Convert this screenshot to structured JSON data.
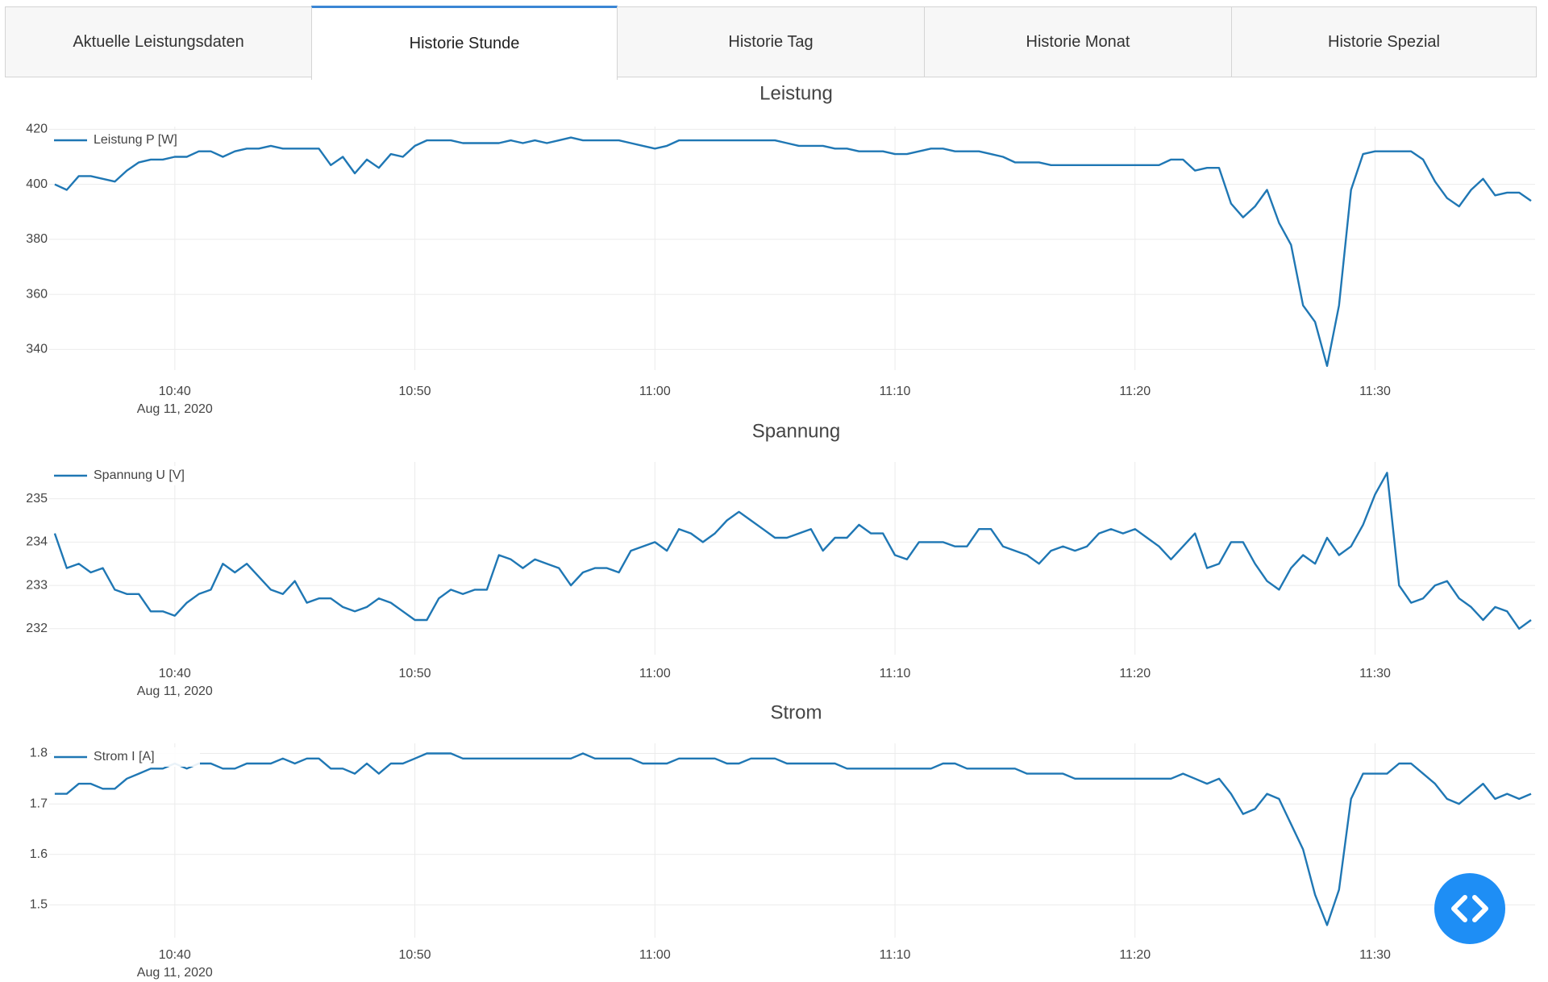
{
  "tabs": [
    "Aktuelle Leistungsdaten",
    "Historie Stunde",
    "Historie Tag",
    "Historie Monat",
    "Historie Spezial"
  ],
  "chart_data": [
    {
      "type": "line",
      "title": "Leistung",
      "date_label": "Aug 11, 2020",
      "grid": true,
      "legend": "top-left",
      "xlim": [
        "10:34:46",
        "11:36:40"
      ],
      "xticks": [
        {
          "value": "10:40:00",
          "label": "10:40"
        },
        {
          "value": "10:50:00",
          "label": "10:50"
        },
        {
          "value": "11:00:00",
          "label": "11:00"
        },
        {
          "value": "11:10:00",
          "label": "11:10"
        },
        {
          "value": "11:20:00",
          "label": "11:20"
        },
        {
          "value": "11:30:00",
          "label": "11:30"
        }
      ],
      "ylim": [
        332.5,
        421
      ],
      "yticks": [
        340,
        360,
        380,
        400,
        420
      ],
      "x": [
        "10:35:00",
        "10:35:30",
        "10:36:00",
        "10:36:30",
        "10:37:00",
        "10:37:30",
        "10:38:00",
        "10:38:30",
        "10:39:00",
        "10:39:30",
        "10:40:00",
        "10:40:30",
        "10:41:00",
        "10:41:30",
        "10:42:00",
        "10:42:30",
        "10:43:00",
        "10:43:30",
        "10:44:00",
        "10:44:30",
        "10:45:00",
        "10:45:30",
        "10:46:00",
        "10:46:30",
        "10:47:00",
        "10:47:30",
        "10:48:00",
        "10:48:30",
        "10:49:00",
        "10:49:30",
        "10:50:00",
        "10:50:30",
        "10:51:00",
        "10:51:30",
        "10:52:00",
        "10:52:30",
        "10:53:00",
        "10:53:30",
        "10:54:00",
        "10:54:30",
        "10:55:00",
        "10:55:30",
        "10:56:00",
        "10:56:30",
        "10:57:00",
        "10:57:30",
        "10:58:00",
        "10:58:30",
        "10:59:00",
        "10:59:30",
        "11:00:00",
        "11:00:30",
        "11:01:00",
        "11:01:30",
        "11:02:00",
        "11:02:30",
        "11:03:00",
        "11:03:30",
        "11:04:00",
        "11:04:30",
        "11:05:00",
        "11:05:30",
        "11:06:00",
        "11:06:30",
        "11:07:00",
        "11:07:30",
        "11:08:00",
        "11:08:30",
        "11:09:00",
        "11:09:30",
        "11:10:00",
        "11:10:30",
        "11:11:00",
        "11:11:30",
        "11:12:00",
        "11:12:30",
        "11:13:00",
        "11:13:30",
        "11:14:00",
        "11:14:30",
        "11:15:00",
        "11:15:30",
        "11:16:00",
        "11:16:30",
        "11:17:00",
        "11:17:30",
        "11:18:00",
        "11:18:30",
        "11:19:00",
        "11:19:30",
        "11:20:00",
        "11:20:30",
        "11:21:00",
        "11:21:30",
        "11:22:00",
        "11:22:30",
        "11:23:00",
        "11:23:30",
        "11:24:00",
        "11:24:30",
        "11:25:00",
        "11:25:30",
        "11:26:00",
        "11:26:30",
        "11:27:00",
        "11:27:30",
        "11:28:00",
        "11:28:30",
        "11:29:00",
        "11:29:30",
        "11:30:00",
        "11:30:30",
        "11:31:00",
        "11:31:30",
        "11:32:00",
        "11:32:30",
        "11:33:00",
        "11:33:30",
        "11:34:00",
        "11:34:30",
        "11:35:00",
        "11:35:30",
        "11:36:00",
        "11:36:30"
      ],
      "series": [
        {
          "name": "Leistung P [W]",
          "color": "#1f77b4",
          "values": [
            400,
            398,
            403,
            403,
            402,
            401,
            405,
            408,
            409,
            409,
            410,
            410,
            412,
            412,
            410,
            412,
            413,
            413,
            414,
            413,
            413,
            413,
            413,
            407,
            410,
            404,
            409,
            406,
            411,
            410,
            414,
            416,
            416,
            416,
            415,
            415,
            415,
            415,
            416,
            415,
            416,
            415,
            416,
            417,
            416,
            416,
            416,
            416,
            415,
            414,
            413,
            414,
            416,
            416,
            416,
            416,
            416,
            416,
            416,
            416,
            416,
            415,
            414,
            414,
            414,
            413,
            413,
            412,
            412,
            412,
            411,
            411,
            412,
            413,
            413,
            412,
            412,
            412,
            411,
            410,
            408,
            408,
            408,
            407,
            407,
            407,
            407,
            407,
            407,
            407,
            407,
            407,
            407,
            409,
            409,
            405,
            406,
            406,
            393,
            388,
            392,
            398,
            386,
            378,
            356,
            350,
            334,
            356,
            398,
            411,
            412,
            412,
            412,
            412,
            409,
            401,
            395,
            392,
            398,
            402,
            396,
            397,
            397,
            394
          ]
        }
      ]
    },
    {
      "type": "line",
      "title": "Spannung",
      "date_label": "Aug 11, 2020",
      "grid": true,
      "legend": "top-left",
      "xlim": [
        "10:34:46",
        "11:36:40"
      ],
      "xticks": [
        {
          "value": "10:40:00",
          "label": "10:40"
        },
        {
          "value": "10:50:00",
          "label": "10:50"
        },
        {
          "value": "11:00:00",
          "label": "11:00"
        },
        {
          "value": "11:10:00",
          "label": "11:10"
        },
        {
          "value": "11:20:00",
          "label": "11:20"
        },
        {
          "value": "11:30:00",
          "label": "11:30"
        }
      ],
      "ylim": [
        231.4,
        235.85
      ],
      "yticks": [
        232,
        233,
        234,
        235
      ],
      "x": [
        "10:35:00",
        "10:35:30",
        "10:36:00",
        "10:36:30",
        "10:37:00",
        "10:37:30",
        "10:38:00",
        "10:38:30",
        "10:39:00",
        "10:39:30",
        "10:40:00",
        "10:40:30",
        "10:41:00",
        "10:41:30",
        "10:42:00",
        "10:42:30",
        "10:43:00",
        "10:43:30",
        "10:44:00",
        "10:44:30",
        "10:45:00",
        "10:45:30",
        "10:46:00",
        "10:46:30",
        "10:47:00",
        "10:47:30",
        "10:48:00",
        "10:48:30",
        "10:49:00",
        "10:49:30",
        "10:50:00",
        "10:50:30",
        "10:51:00",
        "10:51:30",
        "10:52:00",
        "10:52:30",
        "10:53:00",
        "10:53:30",
        "10:54:00",
        "10:54:30",
        "10:55:00",
        "10:55:30",
        "10:56:00",
        "10:56:30",
        "10:57:00",
        "10:57:30",
        "10:58:00",
        "10:58:30",
        "10:59:00",
        "10:59:30",
        "11:00:00",
        "11:00:30",
        "11:01:00",
        "11:01:30",
        "11:02:00",
        "11:02:30",
        "11:03:00",
        "11:03:30",
        "11:04:00",
        "11:04:30",
        "11:05:00",
        "11:05:30",
        "11:06:00",
        "11:06:30",
        "11:07:00",
        "11:07:30",
        "11:08:00",
        "11:08:30",
        "11:09:00",
        "11:09:30",
        "11:10:00",
        "11:10:30",
        "11:11:00",
        "11:11:30",
        "11:12:00",
        "11:12:30",
        "11:13:00",
        "11:13:30",
        "11:14:00",
        "11:14:30",
        "11:15:00",
        "11:15:30",
        "11:16:00",
        "11:16:30",
        "11:17:00",
        "11:17:30",
        "11:18:00",
        "11:18:30",
        "11:19:00",
        "11:19:30",
        "11:20:00",
        "11:20:30",
        "11:21:00",
        "11:21:30",
        "11:22:00",
        "11:22:30",
        "11:23:00",
        "11:23:30",
        "11:24:00",
        "11:24:30",
        "11:25:00",
        "11:25:30",
        "11:26:00",
        "11:26:30",
        "11:27:00",
        "11:27:30",
        "11:28:00",
        "11:28:30",
        "11:29:00",
        "11:29:30",
        "11:30:00",
        "11:30:30",
        "11:31:00",
        "11:31:30",
        "11:32:00",
        "11:32:30",
        "11:33:00",
        "11:33:30",
        "11:34:00",
        "11:34:30",
        "11:35:00",
        "11:35:30",
        "11:36:00",
        "11:36:30"
      ],
      "series": [
        {
          "name": "Spannung U [V]",
          "color": "#1f77b4",
          "values": [
            234.2,
            233.4,
            233.5,
            233.3,
            233.4,
            232.9,
            232.8,
            232.8,
            232.4,
            232.4,
            232.3,
            232.6,
            232.8,
            232.9,
            233.5,
            233.3,
            233.5,
            233.2,
            232.9,
            232.8,
            233.1,
            232.6,
            232.7,
            232.7,
            232.5,
            232.4,
            232.5,
            232.7,
            232.6,
            232.4,
            232.2,
            232.2,
            232.7,
            232.9,
            232.8,
            232.9,
            232.9,
            233.7,
            233.6,
            233.4,
            233.6,
            233.5,
            233.4,
            233.0,
            233.3,
            233.4,
            233.4,
            233.3,
            233.8,
            233.9,
            234.0,
            233.8,
            234.3,
            234.2,
            234.0,
            234.2,
            234.5,
            234.7,
            234.5,
            234.3,
            234.1,
            234.1,
            234.2,
            234.3,
            233.8,
            234.1,
            234.1,
            234.4,
            234.2,
            234.2,
            233.7,
            233.6,
            234.0,
            234.0,
            234.0,
            233.9,
            233.9,
            234.3,
            234.3,
            233.9,
            233.8,
            233.7,
            233.5,
            233.8,
            233.9,
            233.8,
            233.9,
            234.2,
            234.3,
            234.2,
            234.3,
            234.1,
            233.9,
            233.6,
            233.9,
            234.2,
            233.4,
            233.5,
            234.0,
            234.0,
            233.5,
            233.1,
            232.9,
            233.4,
            233.7,
            233.5,
            234.1,
            233.7,
            233.9,
            234.4,
            235.1,
            235.6,
            233.0,
            232.6,
            232.7,
            233.0,
            233.1,
            232.7,
            232.5,
            232.2,
            232.5,
            232.4,
            232.0,
            232.2
          ]
        }
      ]
    },
    {
      "type": "line",
      "title": "Strom",
      "date_label": "Aug 11, 2020",
      "grid": true,
      "legend": "top-left",
      "xlim": [
        "10:34:46",
        "11:36:40"
      ],
      "xticks": [
        {
          "value": "10:40:00",
          "label": "10:40"
        },
        {
          "value": "10:50:00",
          "label": "10:50"
        },
        {
          "value": "11:00:00",
          "label": "11:00"
        },
        {
          "value": "11:10:00",
          "label": "11:10"
        },
        {
          "value": "11:20:00",
          "label": "11:20"
        },
        {
          "value": "11:30:00",
          "label": "11:30"
        }
      ],
      "ylim": [
        1.435,
        1.82
      ],
      "yticks": [
        1.5,
        1.6,
        1.7,
        1.8
      ],
      "x": [
        "10:35:00",
        "10:35:30",
        "10:36:00",
        "10:36:30",
        "10:37:00",
        "10:37:30",
        "10:38:00",
        "10:38:30",
        "10:39:00",
        "10:39:30",
        "10:40:00",
        "10:40:30",
        "10:41:00",
        "10:41:30",
        "10:42:00",
        "10:42:30",
        "10:43:00",
        "10:43:30",
        "10:44:00",
        "10:44:30",
        "10:45:00",
        "10:45:30",
        "10:46:00",
        "10:46:30",
        "10:47:00",
        "10:47:30",
        "10:48:00",
        "10:48:30",
        "10:49:00",
        "10:49:30",
        "10:50:00",
        "10:50:30",
        "10:51:00",
        "10:51:30",
        "10:52:00",
        "10:52:30",
        "10:53:00",
        "10:53:30",
        "10:54:00",
        "10:54:30",
        "10:55:00",
        "10:55:30",
        "10:56:00",
        "10:56:30",
        "10:57:00",
        "10:57:30",
        "10:58:00",
        "10:58:30",
        "10:59:00",
        "10:59:30",
        "11:00:00",
        "11:00:30",
        "11:01:00",
        "11:01:30",
        "11:02:00",
        "11:02:30",
        "11:03:00",
        "11:03:30",
        "11:04:00",
        "11:04:30",
        "11:05:00",
        "11:05:30",
        "11:06:00",
        "11:06:30",
        "11:07:00",
        "11:07:30",
        "11:08:00",
        "11:08:30",
        "11:09:00",
        "11:09:30",
        "11:10:00",
        "11:10:30",
        "11:11:00",
        "11:11:30",
        "11:12:00",
        "11:12:30",
        "11:13:00",
        "11:13:30",
        "11:14:00",
        "11:14:30",
        "11:15:00",
        "11:15:30",
        "11:16:00",
        "11:16:30",
        "11:17:00",
        "11:17:30",
        "11:18:00",
        "11:18:30",
        "11:19:00",
        "11:19:30",
        "11:20:00",
        "11:20:30",
        "11:21:00",
        "11:21:30",
        "11:22:00",
        "11:22:30",
        "11:23:00",
        "11:23:30",
        "11:24:00",
        "11:24:30",
        "11:25:00",
        "11:25:30",
        "11:26:00",
        "11:26:30",
        "11:27:00",
        "11:27:30",
        "11:28:00",
        "11:28:30",
        "11:29:00",
        "11:29:30",
        "11:30:00",
        "11:30:30",
        "11:31:00",
        "11:31:30",
        "11:32:00",
        "11:32:30",
        "11:33:00",
        "11:33:30",
        "11:34:00",
        "11:34:30",
        "11:35:00",
        "11:35:30",
        "11:36:00",
        "11:36:30"
      ],
      "series": [
        {
          "name": "Strom I [A]",
          "color": "#1f77b4",
          "values": [
            1.72,
            1.72,
            1.74,
            1.74,
            1.73,
            1.73,
            1.75,
            1.76,
            1.77,
            1.77,
            1.78,
            1.77,
            1.78,
            1.78,
            1.77,
            1.77,
            1.78,
            1.78,
            1.78,
            1.79,
            1.78,
            1.79,
            1.79,
            1.77,
            1.77,
            1.76,
            1.78,
            1.76,
            1.78,
            1.78,
            1.79,
            1.8,
            1.8,
            1.8,
            1.79,
            1.79,
            1.79,
            1.79,
            1.79,
            1.79,
            1.79,
            1.79,
            1.79,
            1.79,
            1.8,
            1.79,
            1.79,
            1.79,
            1.79,
            1.78,
            1.78,
            1.78,
            1.79,
            1.79,
            1.79,
            1.79,
            1.78,
            1.78,
            1.79,
            1.79,
            1.79,
            1.78,
            1.78,
            1.78,
            1.78,
            1.78,
            1.77,
            1.77,
            1.77,
            1.77,
            1.77,
            1.77,
            1.77,
            1.77,
            1.78,
            1.78,
            1.77,
            1.77,
            1.77,
            1.77,
            1.77,
            1.76,
            1.76,
            1.76,
            1.76,
            1.75,
            1.75,
            1.75,
            1.75,
            1.75,
            1.75,
            1.75,
            1.75,
            1.75,
            1.76,
            1.75,
            1.74,
            1.75,
            1.72,
            1.68,
            1.69,
            1.72,
            1.71,
            1.66,
            1.61,
            1.52,
            1.46,
            1.53,
            1.71,
            1.76,
            1.76,
            1.76,
            1.78,
            1.78,
            1.76,
            1.74,
            1.71,
            1.7,
            1.72,
            1.74,
            1.71,
            1.72,
            1.71,
            1.72
          ]
        }
      ]
    }
  ]
}
